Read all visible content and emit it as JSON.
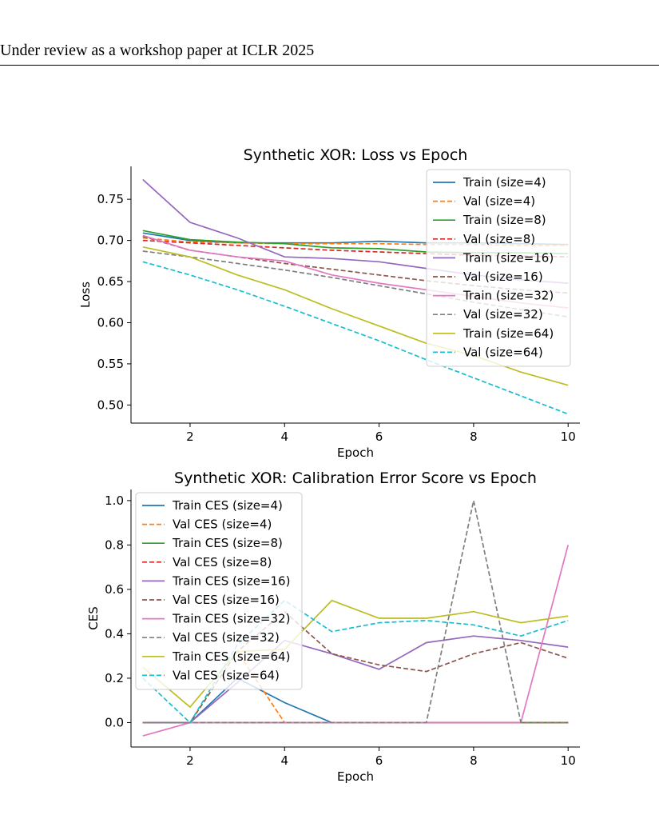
{
  "header": {
    "text": "Under review as a workshop paper at ICLR 2025"
  },
  "chart_data": [
    {
      "type": "line",
      "title": "Synthetic XOR: Loss vs Epoch",
      "xlabel": "Epoch",
      "ylabel": "Loss",
      "xlim": [
        0.75,
        10.25
      ],
      "ylim": [
        0.478,
        0.79
      ],
      "xticks": [
        2,
        4,
        6,
        8,
        10
      ],
      "yticks": [
        0.5,
        0.55,
        0.6,
        0.65,
        0.7,
        0.75
      ],
      "ytick_labels": [
        "0.50",
        "0.55",
        "0.60",
        "0.65",
        "0.70",
        "0.75"
      ],
      "grid": false,
      "legend_position": "top-right",
      "x": [
        1,
        2,
        3,
        4,
        5,
        6,
        7,
        8,
        9,
        10
      ],
      "series": [
        {
          "name": "Train (size=4)",
          "color": "#1f77b4",
          "dash": "solid",
          "values": [
            0.709,
            0.7,
            0.697,
            0.697,
            0.697,
            0.699,
            0.697,
            0.697,
            0.696,
            0.695
          ]
        },
        {
          "name": "Val (size=4)",
          "color": "#ff7f0e",
          "dash": "dashed",
          "values": [
            0.703,
            0.698,
            0.697,
            0.696,
            0.696,
            0.696,
            0.695,
            0.695,
            0.694,
            0.694
          ]
        },
        {
          "name": "Train (size=8)",
          "color": "#2ca02c",
          "dash": "solid",
          "values": [
            0.712,
            0.701,
            0.698,
            0.696,
            0.691,
            0.69,
            0.686,
            0.685,
            0.685,
            0.684
          ]
        },
        {
          "name": "Val (size=8)",
          "color": "#d62728",
          "dash": "dashed",
          "values": [
            0.7,
            0.697,
            0.694,
            0.691,
            0.688,
            0.686,
            0.684,
            0.682,
            0.681,
            0.68
          ]
        },
        {
          "name": "Train (size=16)",
          "color": "#9467bd",
          "dash": "solid",
          "values": [
            0.774,
            0.722,
            0.703,
            0.68,
            0.678,
            0.674,
            0.666,
            0.658,
            0.652,
            0.648
          ]
        },
        {
          "name": "Val (size=16)",
          "color": "#8c564b",
          "dash": "dashed",
          "values": [
            0.705,
            0.688,
            0.68,
            0.672,
            0.665,
            0.658,
            0.651,
            0.645,
            0.64,
            0.636
          ]
        },
        {
          "name": "Train (size=32)",
          "color": "#e377c2",
          "dash": "solid",
          "values": [
            0.706,
            0.688,
            0.68,
            0.675,
            0.658,
            0.648,
            0.64,
            0.632,
            0.624,
            0.618
          ]
        },
        {
          "name": "Val (size=32)",
          "color": "#7f7f7f",
          "dash": "dashed",
          "values": [
            0.687,
            0.68,
            0.672,
            0.664,
            0.655,
            0.645,
            0.635,
            0.625,
            0.616,
            0.607
          ]
        },
        {
          "name": "Train (size=64)",
          "color": "#bcbd22",
          "dash": "solid",
          "values": [
            0.692,
            0.68,
            0.658,
            0.64,
            0.617,
            0.596,
            0.575,
            0.56,
            0.54,
            0.524
          ]
        },
        {
          "name": "Val (size=64)",
          "color": "#17becf",
          "dash": "dashed",
          "values": [
            0.674,
            0.658,
            0.64,
            0.62,
            0.599,
            0.578,
            0.555,
            0.533,
            0.511,
            0.489
          ]
        }
      ]
    },
    {
      "type": "line",
      "title": "Synthetic XOR: Calibration Error Score vs Epoch",
      "xlabel": "Epoch",
      "ylabel": "CES",
      "xlim": [
        0.75,
        10.25
      ],
      "ylim": [
        -0.11,
        1.05
      ],
      "xticks": [
        2,
        4,
        6,
        8,
        10
      ],
      "yticks": [
        0.0,
        0.2,
        0.4,
        0.6,
        0.8,
        1.0
      ],
      "ytick_labels": [
        "0.0",
        "0.2",
        "0.4",
        "0.6",
        "0.8",
        "1.0"
      ],
      "grid": false,
      "legend_position": "top-left",
      "x": [
        1,
        2,
        3,
        4,
        5,
        6,
        7,
        8,
        9,
        10
      ],
      "series": [
        {
          "name": "Train CES (size=4)",
          "color": "#1f77b4",
          "dash": "solid",
          "values": [
            0.0,
            0.0,
            0.2,
            0.09,
            0.0,
            0.0,
            0.0,
            0.0,
            0.0,
            0.0
          ]
        },
        {
          "name": "Val CES (size=4)",
          "color": "#ff7f0e",
          "dash": "dashed",
          "values": [
            0.0,
            0.0,
            0.32,
            0.0,
            0.0,
            0.0,
            0.0,
            0.0,
            0.0,
            0.0
          ]
        },
        {
          "name": "Train CES (size=8)",
          "color": "#2ca02c",
          "dash": "solid",
          "values": [
            0.0,
            0.0,
            0.0,
            0.0,
            0.0,
            0.0,
            0.0,
            0.0,
            0.0,
            0.0
          ]
        },
        {
          "name": "Val CES (size=8)",
          "color": "#d62728",
          "dash": "dashed",
          "values": [
            0.0,
            0.0,
            0.0,
            0.0,
            0.0,
            0.0,
            0.0,
            0.0,
            0.0,
            0.0
          ]
        },
        {
          "name": "Train CES (size=16)",
          "color": "#9467bd",
          "dash": "solid",
          "values": [
            0.0,
            0.0,
            0.18,
            0.37,
            0.31,
            0.24,
            0.36,
            0.39,
            0.37,
            0.34
          ]
        },
        {
          "name": "Val CES (size=16)",
          "color": "#8c564b",
          "dash": "dashed",
          "values": [
            0.0,
            0.0,
            0.32,
            0.5,
            0.31,
            0.26,
            0.23,
            0.31,
            0.36,
            0.29
          ]
        },
        {
          "name": "Train CES (size=32)",
          "color": "#e377c2",
          "dash": "solid",
          "values": [
            -0.06,
            0.0,
            0.0,
            0.0,
            0.0,
            0.0,
            0.0,
            0.0,
            0.0,
            0.8
          ]
        },
        {
          "name": "Val CES (size=32)",
          "color": "#7f7f7f",
          "dash": "dashed",
          "values": [
            0.0,
            0.0,
            0.0,
            0.0,
            0.0,
            0.0,
            0.0,
            1.0,
            0.0,
            0.0
          ]
        },
        {
          "name": "Train CES (size=64)",
          "color": "#bcbd22",
          "dash": "solid",
          "values": [
            0.25,
            0.07,
            0.32,
            0.33,
            0.55,
            0.47,
            0.47,
            0.5,
            0.45,
            0.48
          ]
        },
        {
          "name": "Val CES (size=64)",
          "color": "#17becf",
          "dash": "dashed",
          "values": [
            0.2,
            0.0,
            0.35,
            0.55,
            0.41,
            0.45,
            0.46,
            0.44,
            0.39,
            0.46
          ]
        }
      ]
    }
  ]
}
